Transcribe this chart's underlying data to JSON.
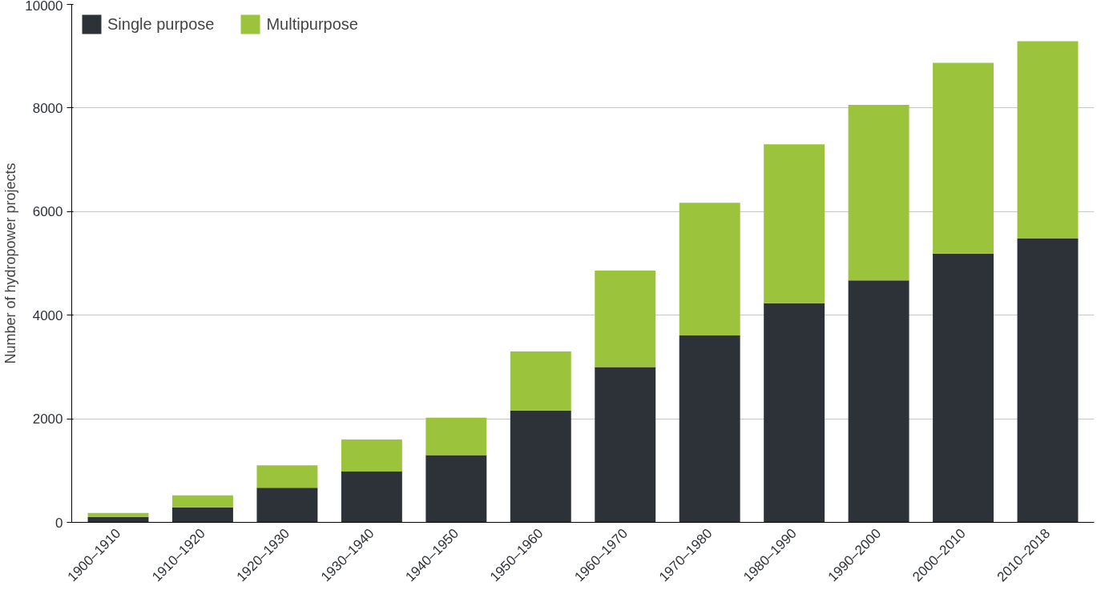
{
  "chart_data": {
    "type": "bar",
    "stacked": true,
    "ylabel": "Number of hydropower projects",
    "categories": [
      "1900–1910",
      "1910–1920",
      "1920–1930",
      "1930–1940",
      "1940–1950",
      "1950–1960",
      "1960–1970",
      "1970–1980",
      "1980–1990",
      "1990–2000",
      "2000–2010",
      "2010–2018"
    ],
    "series": [
      {
        "name": "Single purpose",
        "color": "#2d3138",
        "values": [
          100,
          290,
          670,
          980,
          1300,
          2160,
          3000,
          3610,
          4230,
          4670,
          5190,
          5480
        ]
      },
      {
        "name": "Multipurpose",
        "color": "#9bc33c",
        "values": [
          80,
          230,
          430,
          620,
          720,
          1140,
          1860,
          2560,
          3070,
          3390,
          3680,
          3810
        ]
      }
    ],
    "ylim": [
      0,
      10000
    ],
    "yticks": [
      0,
      2000,
      4000,
      6000,
      8000,
      10000
    ],
    "grid": "y",
    "legend": "top left"
  }
}
